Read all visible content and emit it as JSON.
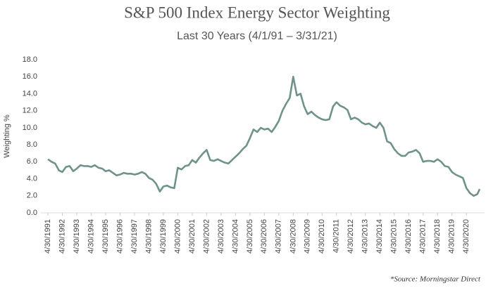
{
  "chart_data": {
    "type": "line",
    "title": "S&P 500 Index Energy Sector Weighting",
    "subtitle": "Last 30 Years (4/1/91 – 3/31/21)",
    "ylabel": "Weighting %",
    "source": "*Source: Morningstar Direct",
    "color": "#6f928a",
    "grid": false,
    "ylim": [
      0,
      18
    ],
    "yticks": [
      {
        "value": 0,
        "label": "0.0"
      },
      {
        "value": 2,
        "label": "2.0"
      },
      {
        "value": 4,
        "label": "4.0"
      },
      {
        "value": 6,
        "label": "6.0"
      },
      {
        "value": 8,
        "label": "8.0"
      },
      {
        "value": 10,
        "label": "10.0"
      },
      {
        "value": 12,
        "label": "12.0"
      },
      {
        "value": 14,
        "label": "14.0"
      },
      {
        "value": 16,
        "label": "16.0"
      },
      {
        "value": 18,
        "label": "18.0"
      }
    ],
    "xticks": [
      "4/30/1991",
      "4/30/1992",
      "4/30/1993",
      "4/30/1994",
      "4/30/1995",
      "4/30/1996",
      "4/30/1997",
      "4/30/1998",
      "4/30/1999",
      "4/30/2000",
      "4/30/2001",
      "4/30/2002",
      "4/30/2003",
      "4/30/2004",
      "4/30/2005",
      "4/30/2006",
      "4/30/2007",
      "4/30/2008",
      "4/30/2009",
      "4/30/2010",
      "4/30/2011",
      "4/30/2012",
      "4/30/2013",
      "4/30/2014",
      "4/30/2015",
      "4/30/2016",
      "4/30/2017",
      "4/30/2018",
      "4/30/2019",
      "4/30/2020"
    ],
    "x": [
      "4/30/1991",
      "7/31/1991",
      "10/31/1991",
      "1/31/1992",
      "4/30/1992",
      "7/31/1992",
      "10/31/1992",
      "1/31/1993",
      "4/30/1993",
      "7/31/1993",
      "10/31/1993",
      "1/31/1994",
      "4/30/1994",
      "7/31/1994",
      "10/31/1994",
      "1/31/1995",
      "4/30/1995",
      "7/31/1995",
      "10/31/1995",
      "1/31/1996",
      "4/30/1996",
      "7/31/1996",
      "10/31/1996",
      "1/31/1997",
      "4/30/1997",
      "7/31/1997",
      "10/31/1997",
      "1/31/1998",
      "4/30/1998",
      "7/31/1998",
      "10/31/1998",
      "1/31/1999",
      "4/30/1999",
      "7/31/1999",
      "10/31/1999",
      "1/31/2000",
      "4/30/2000",
      "7/31/2000",
      "10/31/2000",
      "1/31/2001",
      "4/30/2001",
      "7/31/2001",
      "10/31/2001",
      "1/31/2002",
      "4/30/2002",
      "7/31/2002",
      "10/31/2002",
      "1/31/2003",
      "4/30/2003",
      "7/31/2003",
      "10/31/2003",
      "1/31/2004",
      "4/30/2004",
      "7/31/2004",
      "10/31/2004",
      "1/31/2005",
      "4/30/2005",
      "7/31/2005",
      "10/31/2005",
      "1/31/2006",
      "4/30/2006",
      "7/31/2006",
      "10/31/2006",
      "1/31/2007",
      "4/30/2007",
      "7/31/2007",
      "10/31/2007",
      "1/31/2008",
      "4/30/2008",
      "7/31/2008",
      "10/31/2008",
      "1/31/2009",
      "4/30/2009",
      "7/31/2009",
      "10/31/2009",
      "1/31/2010",
      "4/30/2010",
      "7/31/2010",
      "10/31/2010",
      "1/31/2011",
      "4/30/2011",
      "7/31/2011",
      "10/31/2011",
      "1/31/2012",
      "4/30/2012",
      "7/31/2012",
      "10/31/2012",
      "1/31/2013",
      "4/30/2013",
      "7/31/2013",
      "10/31/2013",
      "1/31/2014",
      "4/30/2014",
      "7/31/2014",
      "10/31/2014",
      "1/31/2015",
      "4/30/2015",
      "7/31/2015",
      "10/31/2015",
      "1/31/2016",
      "4/30/2016",
      "7/31/2016",
      "10/31/2016",
      "1/31/2017",
      "4/30/2017",
      "7/31/2017",
      "10/31/2017",
      "1/31/2018",
      "4/30/2018",
      "7/31/2018",
      "10/31/2018",
      "1/31/2019",
      "4/30/2019",
      "7/31/2019",
      "10/31/2019",
      "1/31/2020",
      "4/30/2020",
      "7/31/2020",
      "10/31/2020",
      "1/31/2021",
      "3/31/2021"
    ],
    "values": [
      6.3,
      6.0,
      5.8,
      5.0,
      4.8,
      5.4,
      5.5,
      4.9,
      5.2,
      5.6,
      5.5,
      5.5,
      5.4,
      5.6,
      5.3,
      5.2,
      4.9,
      5.0,
      4.7,
      4.4,
      4.5,
      4.7,
      4.6,
      4.6,
      4.5,
      4.6,
      4.8,
      4.6,
      4.1,
      3.9,
      3.4,
      2.5,
      3.1,
      3.2,
      3.0,
      2.9,
      5.3,
      5.1,
      5.5,
      5.6,
      6.2,
      5.9,
      6.5,
      7.0,
      7.4,
      6.2,
      6.1,
      6.3,
      6.1,
      5.9,
      5.8,
      6.2,
      6.6,
      7.0,
      7.5,
      7.9,
      8.8,
      9.8,
      9.5,
      10.0,
      9.8,
      9.9,
      9.5,
      10.1,
      10.8,
      12.0,
      12.8,
      13.5,
      16.0,
      13.8,
      14.0,
      12.5,
      11.6,
      11.9,
      11.5,
      11.2,
      11.0,
      10.9,
      11.0,
      12.5,
      13.0,
      12.6,
      12.4,
      12.1,
      11.0,
      11.2,
      11.0,
      10.6,
      10.4,
      10.5,
      10.2,
      10.0,
      10.6,
      10.0,
      8.4,
      8.2,
      7.5,
      7.0,
      6.7,
      6.7,
      7.1,
      7.2,
      7.4,
      7.0,
      6.0,
      6.1,
      6.1,
      6.0,
      6.3,
      6.0,
      5.5,
      5.4,
      4.8,
      4.5,
      4.3,
      4.1,
      2.9,
      2.3,
      2.0,
      2.2,
      2.8
    ]
  }
}
